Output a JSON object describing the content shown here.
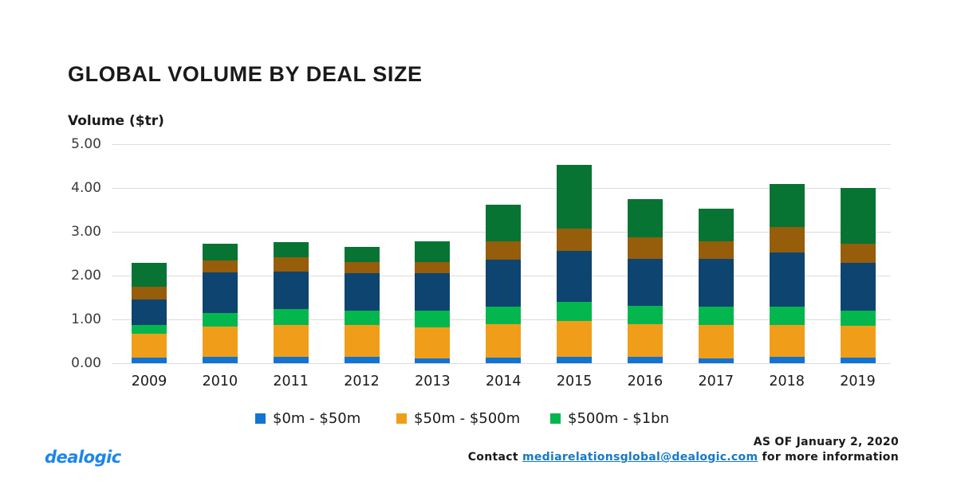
{
  "colors": {
    "bar_blue": "#1273d2",
    "bar_orange": "#f09e19",
    "bar_green": "#04b64e",
    "bar_navy": "#0e4470",
    "bar_brown": "#965d0a",
    "bar_dark_green": "#077434",
    "gridline": "#dcdcdc",
    "logo_blue": "#1c86ec",
    "link_blue": "#1779c8",
    "text_dark": "#1a1a1a"
  },
  "chart_data": {
    "type": "bar",
    "stacked": true,
    "title": "GLOBAL VOLUME BY DEAL SIZE",
    "ylabel": "Volume ($tr)",
    "ylim": [
      0,
      5
    ],
    "yticks": [
      "0.00",
      "1.00",
      "2.00",
      "3.00",
      "4.00",
      "5.00"
    ],
    "grid": true,
    "legend_position": "bottom",
    "categories": [
      "2009",
      "2010",
      "2011",
      "2012",
      "2013",
      "2014",
      "2015",
      "2016",
      "2017",
      "2018",
      "2019"
    ],
    "series": [
      {
        "label": "$0m - $50m",
        "color": "#1273d2",
        "in_legend": true,
        "values": [
          0.12,
          0.15,
          0.15,
          0.15,
          0.11,
          0.13,
          0.14,
          0.14,
          0.11,
          0.14,
          0.12
        ]
      },
      {
        "label": "$50m - $500m",
        "color": "#f09e19",
        "in_legend": true,
        "values": [
          0.55,
          0.69,
          0.72,
          0.72,
          0.71,
          0.76,
          0.83,
          0.76,
          0.77,
          0.74,
          0.73
        ]
      },
      {
        "label": "$500m - $1bn",
        "color": "#04b64e",
        "in_legend": true,
        "values": [
          0.21,
          0.31,
          0.36,
          0.34,
          0.38,
          0.4,
          0.43,
          0.41,
          0.41,
          0.41,
          0.35
        ]
      },
      {
        "label": "",
        "color": "#0e4470",
        "in_legend": false,
        "values": [
          0.58,
          0.93,
          0.87,
          0.85,
          0.86,
          1.08,
          1.16,
          1.08,
          1.09,
          1.24,
          1.1
        ]
      },
      {
        "label": "",
        "color": "#965d0a",
        "in_legend": false,
        "values": [
          0.29,
          0.27,
          0.33,
          0.25,
          0.26,
          0.41,
          0.52,
          0.48,
          0.41,
          0.59,
          0.43
        ]
      },
      {
        "label": "",
        "color": "#077434",
        "in_legend": false,
        "values": [
          0.54,
          0.38,
          0.34,
          0.34,
          0.47,
          0.84,
          1.46,
          0.88,
          0.74,
          0.98,
          1.28
        ]
      }
    ],
    "totals": [
      2.29,
      2.73,
      2.77,
      2.65,
      2.79,
      3.62,
      4.54,
      3.75,
      3.53,
      4.1,
      4.01
    ]
  },
  "footer": {
    "logo_text": "dealogic",
    "as_of": "AS OF January 2, 2020",
    "contact_prefix": "Contact",
    "contact_email": "mediarelationsglobal@dealogic.com",
    "contact_suffix": "for more information"
  }
}
